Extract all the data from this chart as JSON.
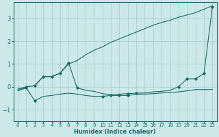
{
  "xlabel": "Humidex (Indice chaleur)",
  "bg_color": "#cce8e8",
  "grid_color": "#aacfcf",
  "line_color": "#1a6b6b",
  "xlim": [
    -0.5,
    23.5
  ],
  "ylim": [
    -1.5,
    3.7
  ],
  "xticks": [
    0,
    1,
    2,
    3,
    4,
    5,
    6,
    7,
    8,
    9,
    10,
    11,
    12,
    13,
    14,
    15,
    16,
    17,
    18,
    19,
    20,
    21,
    22,
    23
  ],
  "yticks": [
    -1,
    0,
    1,
    2,
    3
  ],
  "line1_x": [
    0,
    1,
    2,
    3,
    4,
    5,
    6,
    7,
    8,
    9,
    10,
    11,
    12,
    13,
    14,
    15,
    16,
    17,
    18,
    19,
    20,
    21,
    22,
    23
  ],
  "line1_y": [
    -0.1,
    0.0,
    0.05,
    0.45,
    0.45,
    0.6,
    1.0,
    1.15,
    1.4,
    1.6,
    1.75,
    1.95,
    2.1,
    2.25,
    2.4,
    2.55,
    2.7,
    2.82,
    2.92,
    3.05,
    3.15,
    3.25,
    3.4,
    3.55
  ],
  "line2_x": [
    0,
    1,
    2,
    3,
    4,
    5,
    6,
    7,
    8,
    9,
    10,
    11,
    12,
    13,
    14,
    15,
    16,
    17,
    18,
    19,
    20,
    21,
    22,
    23
  ],
  "line2_y": [
    -0.15,
    0.0,
    0.05,
    0.45,
    0.45,
    0.6,
    1.05,
    -0.05,
    -0.15,
    -0.2,
    -0.3,
    -0.35,
    -0.32,
    -0.3,
    -0.28,
    -0.27,
    -0.22,
    -0.2,
    -0.15,
    0.0,
    0.35,
    0.35,
    0.58,
    3.5
  ],
  "line3_x": [
    0,
    1,
    2,
    3,
    4,
    5,
    6,
    7,
    8,
    9,
    10,
    11,
    12,
    13,
    14,
    15,
    16,
    17,
    18,
    19,
    20,
    21,
    22,
    23
  ],
  "line3_y": [
    -0.18,
    -0.05,
    -0.62,
    -0.42,
    -0.38,
    -0.32,
    -0.28,
    -0.32,
    -0.38,
    -0.42,
    -0.42,
    -0.38,
    -0.38,
    -0.38,
    -0.33,
    -0.32,
    -0.3,
    -0.27,
    -0.25,
    -0.22,
    -0.18,
    -0.12,
    -0.12,
    -0.12
  ],
  "marker2_x": [
    1,
    2,
    3,
    4,
    5,
    6,
    7,
    13,
    14,
    19,
    20,
    21,
    22,
    23
  ],
  "marker2_y": [
    0.0,
    0.05,
    0.45,
    0.45,
    0.6,
    1.05,
    -0.05,
    -0.3,
    -0.28,
    0.0,
    0.35,
    0.35,
    0.58,
    3.5
  ],
  "marker3_x": [
    1,
    2,
    10,
    11,
    12,
    13
  ],
  "marker3_y": [
    -0.05,
    -0.62,
    -0.42,
    -0.38,
    -0.38,
    -0.38
  ]
}
